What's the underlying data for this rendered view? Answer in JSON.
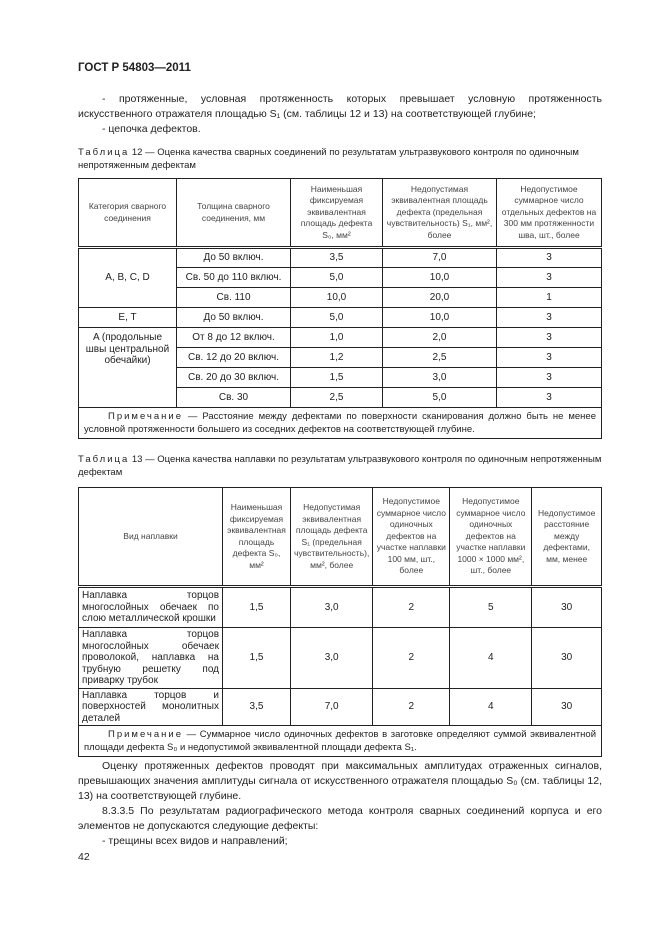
{
  "header": "ГОСТ Р 54803—2011",
  "intro": {
    "p1": "- протяженные, условная протяженность которых превышает условную протяженность искусственного отражателя площадью S₁ (см. таблицы 12 и 13) на соответствующей глубине;",
    "p2": "- цепочка дефектов."
  },
  "table12": {
    "label": "Таблица",
    "caption": " 12 — Оценка качества сварных соединений по результатам ультразвукового контроля по одиночным непротяженным дефектам",
    "headers": [
      "Категория сварного соединения",
      "Толщина сварного соединения, мм",
      "Наименьшая фиксируемая эквивалентная площадь дефекта S₀, мм²",
      "Недопустимая эквивалентная площадь дефекта (предельная чувствительность) S₁, мм², более",
      "Недопустимое суммарное число отдельных дефектов на 300 мм протяженности шва, шт., более"
    ],
    "groups": [
      "A, B, C, D",
      "E, T",
      "A (продольные швы центральной обечайки)"
    ],
    "rows": [
      [
        "До 50 включ.",
        "3,5",
        "7,0",
        "3"
      ],
      [
        "Св. 50 до 110 включ.",
        "5,0",
        "10,0",
        "3"
      ],
      [
        "Св. 110",
        "10,0",
        "20,0",
        "1"
      ],
      [
        "До 50 включ.",
        "5,0",
        "10,0",
        "3"
      ],
      [
        "От 8 до 12 включ.",
        "1,0",
        "2,0",
        "3"
      ],
      [
        "Св. 12 до 20 включ.",
        "1,2",
        "2,5",
        "3"
      ],
      [
        "Св. 20 до 30 включ.",
        "1,5",
        "3,0",
        "3"
      ],
      [
        "Св. 30",
        "2,5",
        "5,0",
        "3"
      ]
    ],
    "note_label": "Примечание",
    "note": " — Расстояние между дефектами по поверхности сканирования должно быть не менее условной протяженности большего из соседних дефектов на соответствующей глубине."
  },
  "table13": {
    "label": "Таблица",
    "caption": " 13 — Оценка качества наплавки по результатам ультразвукового контроля по одиночным непротяженным дефектам",
    "headers": [
      "Вид наплавки",
      "Наименьшая фиксируемая эквивалентная площадь дефекта S₀, мм²",
      "Недопустимая эквивалентная площадь дефекта S₁ (предельная чувствительность), мм², более",
      "Недопустимое суммарное число одиночных дефектов на участке наплавки 100 мм, шт., более",
      "Недопустимое суммарное число одиночных дефектов на участке наплавки 1000 × 1000 мм², шт., более",
      "Недопустимое расстояние между дефектами, мм, менее"
    ],
    "rows": [
      [
        "Наплавка торцов многослойных обечаек по слою металлической крошки",
        "1,5",
        "3,0",
        "2",
        "5",
        "30"
      ],
      [
        "Наплавка торцов многослойных обечаек проволокой, наплавка на трубную решетку под приварку трубок",
        "1,5",
        "3,0",
        "2",
        "4",
        "30"
      ],
      [
        "Наплавка торцов и поверхностей монолитных деталей",
        "3,5",
        "7,0",
        "2",
        "4",
        "30"
      ]
    ],
    "note_label": "Примечание",
    "note": " — Суммарное число одиночных дефектов в заготовке определяют суммой эквивалентной площади дефекта S₀ и недопустимой эквивалентной площади дефекта S₁."
  },
  "outro": {
    "p1": "Оценку протяженных дефектов проводят при максимальных амплитудах отраженных сигналов, превышающих значения амплитуды сигнала от искусственного отражателя площадью S₀ (см. таблицы 12, 13) на соответствующей глубине.",
    "p2": "8.3.3.5 По результатам радиографического метода контроля сварных соединений корпуса и его элементов не допускаются следующие дефекты:",
    "p3": "- трещины всех видов и направлений;"
  },
  "page_number": "42"
}
